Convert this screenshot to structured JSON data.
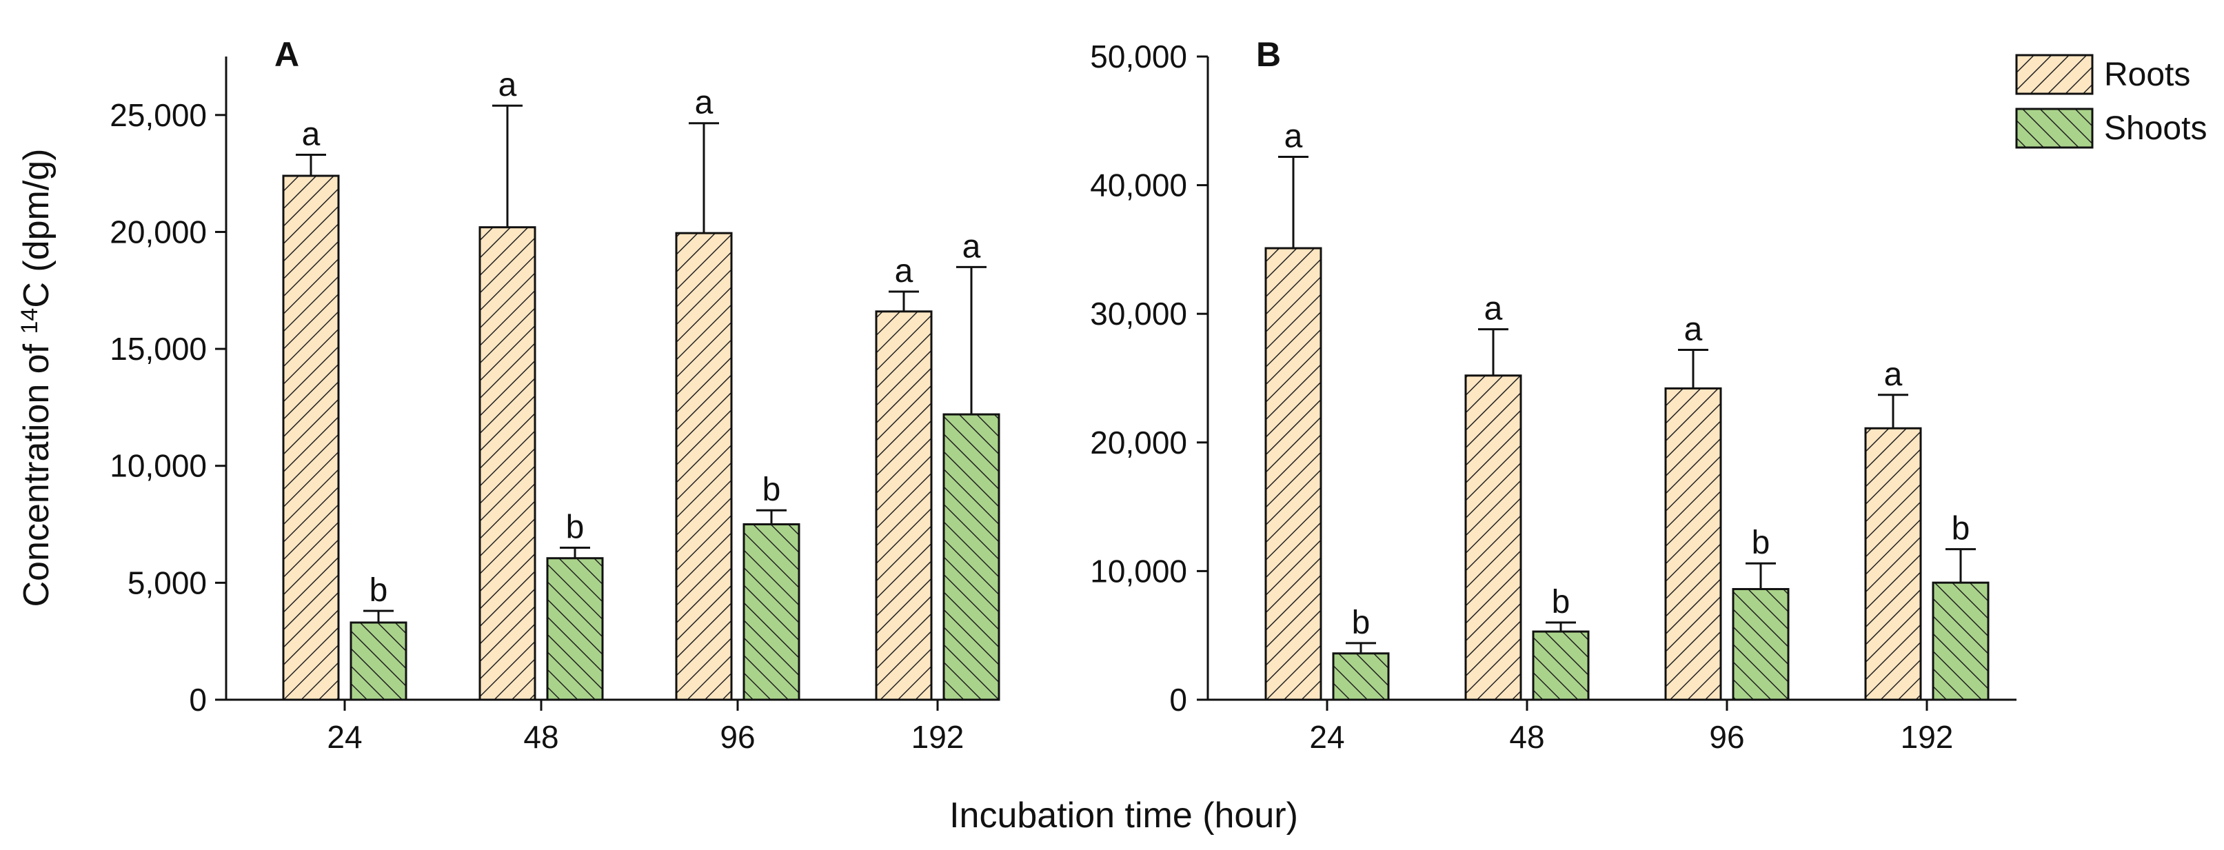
{
  "figure": {
    "ylabel_prefix": "Concentration of ",
    "ylabel_superscript": "14",
    "ylabel_suffix": "C (dpm/g)",
    "xlabel": "Incubation time (hour)"
  },
  "legend": {
    "items": [
      {
        "name": "Roots",
        "color": "#fde6c2",
        "hatch": "forward"
      },
      {
        "name": "Shoots",
        "color": "#a9d38a",
        "hatch": "backward"
      }
    ]
  },
  "chart_data": [
    {
      "type": "bar",
      "panel": "A",
      "title": "",
      "xlabel": "Incubation time (hour)",
      "ylabel": "Concentration of 14C (dpm/g)",
      "categories": [
        "24",
        "48",
        "96",
        "192"
      ],
      "ylim": [
        0,
        27500
      ],
      "yticks": [
        0,
        5000,
        10000,
        15000,
        20000,
        25000
      ],
      "ytick_labels": [
        "0",
        "5,000",
        "10,000",
        "15,000",
        "20,000",
        "25,000"
      ],
      "grid": false,
      "series": [
        {
          "name": "Roots",
          "values": [
            22400,
            20200,
            19950,
            16600
          ],
          "errors": [
            900,
            5200,
            4700,
            850
          ],
          "letters": [
            "a",
            "a",
            "a",
            "a"
          ]
        },
        {
          "name": "Shoots",
          "values": [
            3300,
            6050,
            7500,
            12200
          ],
          "errors": [
            500,
            450,
            600,
            6300
          ],
          "letters": [
            "b",
            "b",
            "b",
            "a"
          ]
        }
      ]
    },
    {
      "type": "bar",
      "panel": "B",
      "title": "",
      "xlabel": "Incubation time (hour)",
      "ylabel": "",
      "categories": [
        "24",
        "48",
        "96",
        "192"
      ],
      "ylim": [
        0,
        50000
      ],
      "yticks": [
        0,
        10000,
        20000,
        30000,
        40000,
        50000
      ],
      "ytick_labels": [
        "0",
        "10,000",
        "20,000",
        "30,000",
        "40,000",
        "50,000"
      ],
      "grid": false,
      "legend_position": "top-right",
      "series": [
        {
          "name": "Roots",
          "values": [
            35100,
            25200,
            24200,
            21100
          ],
          "errors": [
            7100,
            3600,
            3000,
            2600
          ],
          "letters": [
            "a",
            "a",
            "a",
            "a"
          ]
        },
        {
          "name": "Shoots",
          "values": [
            3600,
            5300,
            8600,
            9100
          ],
          "errors": [
            800,
            700,
            2000,
            2600
          ],
          "letters": [
            "b",
            "b",
            "b",
            "b"
          ]
        }
      ]
    }
  ]
}
